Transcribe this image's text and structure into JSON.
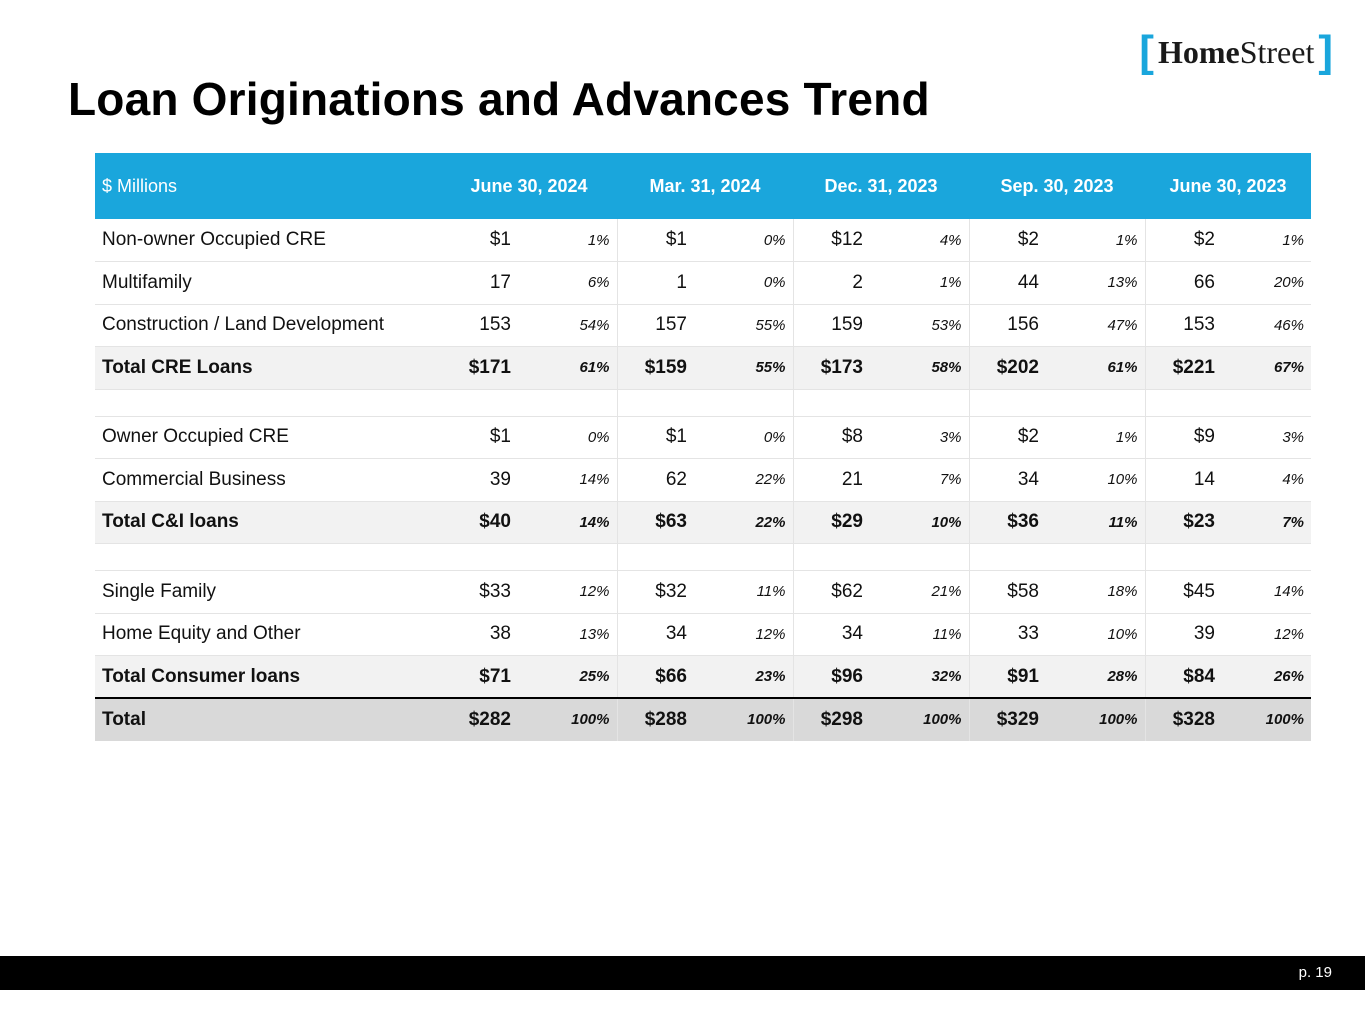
{
  "logo": {
    "open": "[",
    "home": "Home",
    "street": "Street",
    "close": "]"
  },
  "title": "Loan Originations and Advances Trend",
  "table": {
    "header_label": "$ Millions",
    "periods": [
      "June 30, 2024",
      "Mar. 31, 2024",
      "Dec. 31, 2023",
      "Sep. 30, 2023",
      "June 30, 2023"
    ],
    "rows": [
      {
        "label": "Non-owner Occupied CRE",
        "type": "normal",
        "cells": [
          [
            "$1",
            "1%"
          ],
          [
            "$1",
            "0%"
          ],
          [
            "$12",
            "4%"
          ],
          [
            "$2",
            "1%"
          ],
          [
            "$2",
            "1%"
          ]
        ]
      },
      {
        "label": "Multifamily",
        "type": "normal",
        "cells": [
          [
            "17",
            "6%"
          ],
          [
            "1",
            "0%"
          ],
          [
            "2",
            "1%"
          ],
          [
            "44",
            "13%"
          ],
          [
            "66",
            "20%"
          ]
        ]
      },
      {
        "label": "Construction / Land Development",
        "type": "normal",
        "cells": [
          [
            "153",
            "54%"
          ],
          [
            "157",
            "55%"
          ],
          [
            "159",
            "53%"
          ],
          [
            "156",
            "47%"
          ],
          [
            "153",
            "46%"
          ]
        ]
      },
      {
        "label": "Total CRE Loans",
        "type": "sub",
        "cells": [
          [
            "$171",
            "61%"
          ],
          [
            "$159",
            "55%"
          ],
          [
            "$173",
            "58%"
          ],
          [
            "$202",
            "61%"
          ],
          [
            "$221",
            "67%"
          ]
        ]
      },
      {
        "label": "",
        "type": "spacer",
        "cells": [
          [
            "",
            ""
          ],
          [
            "",
            ""
          ],
          [
            "",
            ""
          ],
          [
            "",
            ""
          ],
          [
            "",
            ""
          ]
        ]
      },
      {
        "label": "Owner Occupied CRE",
        "type": "normal",
        "cells": [
          [
            "$1",
            "0%"
          ],
          [
            "$1",
            "0%"
          ],
          [
            "$8",
            "3%"
          ],
          [
            "$2",
            "1%"
          ],
          [
            "$9",
            "3%"
          ]
        ]
      },
      {
        "label": "Commercial Business",
        "type": "normal",
        "cells": [
          [
            "39",
            "14%"
          ],
          [
            "62",
            "22%"
          ],
          [
            "21",
            "7%"
          ],
          [
            "34",
            "10%"
          ],
          [
            "14",
            "4%"
          ]
        ]
      },
      {
        "label": "Total C&I loans",
        "type": "sub",
        "cells": [
          [
            "$40",
            "14%"
          ],
          [
            "$63",
            "22%"
          ],
          [
            "$29",
            "10%"
          ],
          [
            "$36",
            "11%"
          ],
          [
            "$23",
            "7%"
          ]
        ]
      },
      {
        "label": "",
        "type": "spacer",
        "cells": [
          [
            "",
            ""
          ],
          [
            "",
            ""
          ],
          [
            "",
            ""
          ],
          [
            "",
            ""
          ],
          [
            "",
            ""
          ]
        ]
      },
      {
        "label": "Single Family",
        "type": "normal",
        "cells": [
          [
            "$33",
            "12%"
          ],
          [
            "$32",
            "11%"
          ],
          [
            "$62",
            "21%"
          ],
          [
            "$58",
            "18%"
          ],
          [
            "$45",
            "14%"
          ]
        ]
      },
      {
        "label": "Home Equity and Other",
        "type": "normal",
        "cells": [
          [
            "38",
            "13%"
          ],
          [
            "34",
            "12%"
          ],
          [
            "34",
            "11%"
          ],
          [
            "33",
            "10%"
          ],
          [
            "39",
            "12%"
          ]
        ]
      },
      {
        "label": "Total Consumer loans",
        "type": "sub",
        "cells": [
          [
            "$71",
            "25%"
          ],
          [
            "$66",
            "23%"
          ],
          [
            "$96",
            "32%"
          ],
          [
            "$91",
            "28%"
          ],
          [
            "$84",
            "26%"
          ]
        ]
      },
      {
        "label": "Total",
        "type": "total",
        "cells": [
          [
            "$282",
            "100%"
          ],
          [
            "$288",
            "100%"
          ],
          [
            "$298",
            "100%"
          ],
          [
            "$329",
            "100%"
          ],
          [
            "$328",
            "100%"
          ]
        ]
      }
    ]
  },
  "footer": {
    "page": "p. 19"
  },
  "colors": {
    "accent": "#1aa6dc",
    "footer_bg": "#000000",
    "subtotal_bg": "#f2f2f2",
    "total_bg": "#d9d9d9"
  }
}
